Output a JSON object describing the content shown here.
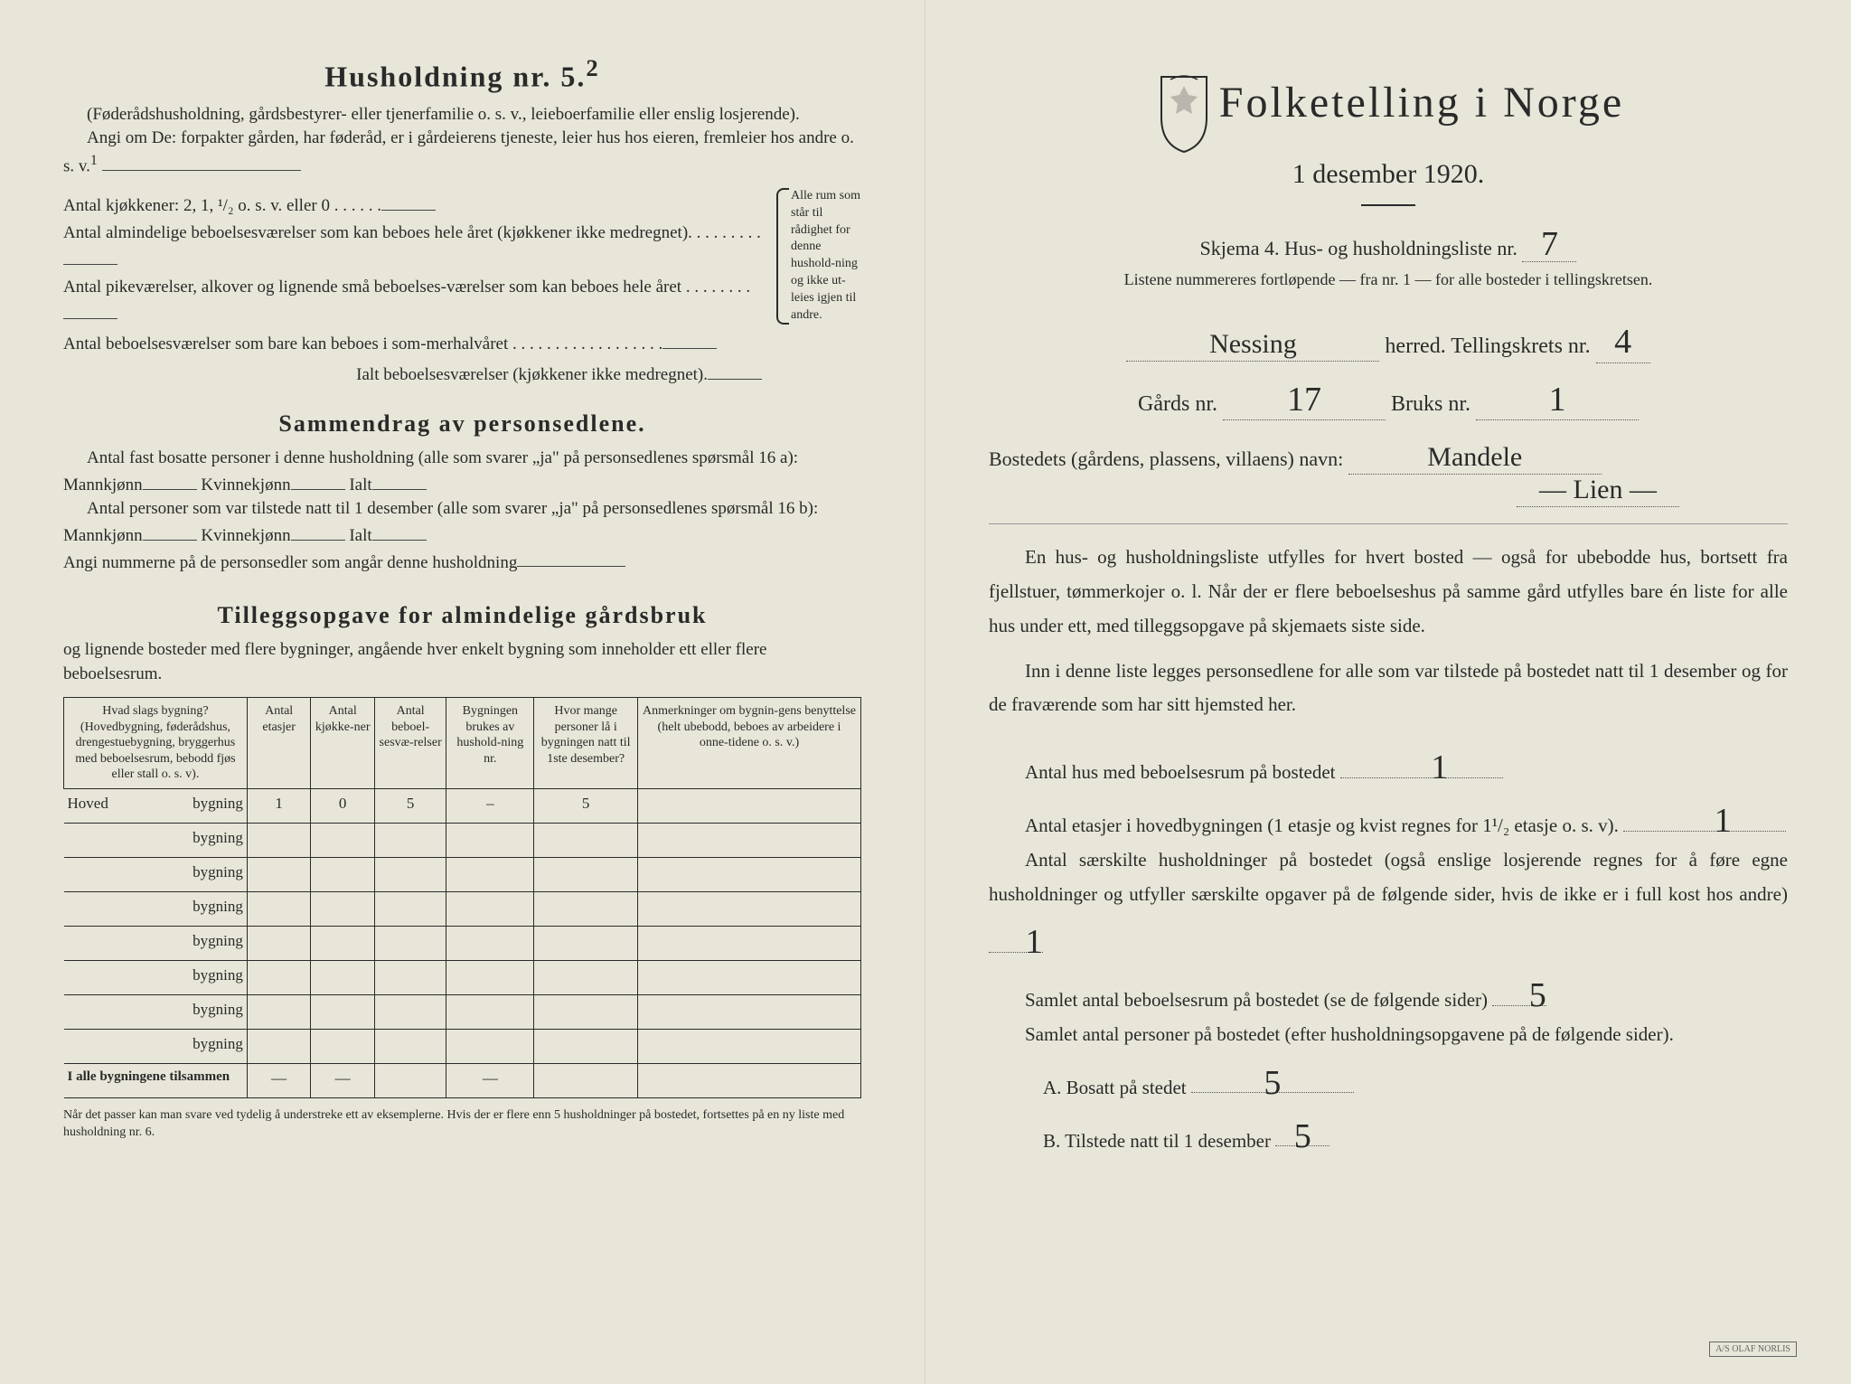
{
  "left": {
    "heading": "Husholdning nr. 5.",
    "heading_sup": "2",
    "p1": "(Føderådshusholdning, gårdsbestyrer- eller tjenerfamilie o. s. v., leieboerfamilie eller enslig losjerende).",
    "p2a": "Angi om De:  forpakter gården, har føderåd, er i gårdeierens tjeneste, leier hus hos eieren, fremleier hos andre o. s. v.",
    "p2_sup": "1",
    "k1": "Antal kjøkkener: 2, 1, ¹/₂ o. s. v. eller 0 . . . . . .",
    "k2": "Antal almindelige beboelsesværelser som kan beboes hele året (kjøkkener ikke medregnet). . . . . . . . .",
    "k3": "Antal pikeværelser, alkover og lignende små beboelses-værelser som kan beboes hele året . . . . . . . .",
    "k4": "Antal beboelsesværelser som bare kan beboes i som-merhalvåret . . . . . . . . . . . . . . . . . .",
    "k_sum": "Ialt beboelsesværelser  (kjøkkener ikke medregnet).",
    "curly": "Alle rum som står til rådighet for denne hushold-ning og ikke ut-leies igjen til andre.",
    "sec2": "Sammendrag av personsedlene.",
    "s2a": "Antal fast bosatte personer i denne husholdning (alle som svarer „ja\" på personsedlenes spørsmål 16 a): Mannkjønn",
    "s2a2": " Kvinnekjønn",
    "s2a3": " Ialt",
    "s2b": "Antal personer som var tilstede natt til 1 desember (alle som svarer „ja\" på personsedlenes spørsmål 16 b): Mannkjønn",
    "s2c": "Angi nummerne på de personsedler som angår denne husholdning",
    "sec3": "Tilleggsopgave for almindelige gårdsbruk",
    "s3sub": "og lignende bosteder med flere bygninger, angående hver enkelt bygning som inneholder ett eller flere beboelsesrum.",
    "th": [
      "Hvad slags bygning?\n(Hovedbygning, føderådshus, drengestuebygning, bryggerhus med beboelsesrum, bebodd fjøs eller stall o. s. v).",
      "Antal etasjer",
      "Antal kjøkke-ner",
      "Antal beboel-sesvæ-relser",
      "Bygningen brukes av hushold-ning nr.",
      "Hvor mange personer lå i bygningen natt til 1ste desember?",
      "Anmerkninger om bygnin-gens benyttelse (helt ubebodd, beboes av arbeidere i onne-tidene o. s. v.)"
    ],
    "rows": [
      {
        "name_hw": "Hoved",
        "lbl": "bygning",
        "c": [
          "1",
          "0",
          "5",
          "–",
          "5",
          ""
        ]
      },
      {
        "name_hw": "",
        "lbl": "bygning",
        "c": [
          "",
          "",
          "",
          "",
          "",
          ""
        ]
      },
      {
        "name_hw": "",
        "lbl": "bygning",
        "c": [
          "",
          "",
          "",
          "",
          "",
          ""
        ]
      },
      {
        "name_hw": "",
        "lbl": "bygning",
        "c": [
          "",
          "",
          "",
          "",
          "",
          ""
        ]
      },
      {
        "name_hw": "",
        "lbl": "bygning",
        "c": [
          "",
          "",
          "",
          "",
          "",
          ""
        ]
      },
      {
        "name_hw": "",
        "lbl": "bygning",
        "c": [
          "",
          "",
          "",
          "",
          "",
          ""
        ]
      },
      {
        "name_hw": "",
        "lbl": "bygning",
        "c": [
          "",
          "",
          "",
          "",
          "",
          ""
        ]
      },
      {
        "name_hw": "",
        "lbl": "bygning",
        "c": [
          "",
          "",
          "",
          "",
          "",
          ""
        ]
      }
    ],
    "sumrow": "I alle bygningene tilsammen",
    "foot": "Når det passer kan man svare ved tydelig å understreke ett av eksemplerne.\nHvis der er flere enn 5 husholdninger på bostedet, fortsettes på en ny liste med husholdning nr. 6."
  },
  "right": {
    "title": "Folketelling  i  Norge",
    "subtitle": "1 desember 1920.",
    "skjema": "Skjema 4.  Hus- og husholdningsliste nr.",
    "skjema_hw": "7",
    "listene": "Listene nummereres fortløpende — fra nr. 1 — for alle bosteder i tellingskretsen.",
    "herred_hw": "Nessing",
    "herred_lbl": " herred.   Tellingskrets nr.",
    "krets_hw": "4",
    "gards_lbl": "Gårds nr.",
    "gards_hw": "17",
    "bruks_lbl": "  Bruks nr.",
    "bruks_hw": "1",
    "bosted_lbl": "Bostedets (gårdens, plassens, villaens) navn:",
    "bosted_hw": "Mandele",
    "bosted_hw2": "— Lien —",
    "body1": "En hus- og husholdningsliste utfylles for hvert bosted — også for ubebodde hus, bortsett fra fjellstuer, tømmerkojer o. l.  Når der er flere beboelseshus på samme gård utfylles bare én liste for alle hus under ett, med tilleggsopgave på skjemaets siste side.",
    "body2": "Inn i denne liste legges personsedlene for alle som var tilstede på bostedet natt til 1 desember og for de fraværende som har sitt hjemsted her.",
    "q1": "Antal hus med beboelsesrum på bostedet",
    "q1_hw": "1",
    "q2a": "Antal etasjer i hovedbygningen (1 etasje og kvist regnes for 1¹/₂ etasje o. s. v).",
    "q2_hw": "1",
    "q3": "Antal særskilte husholdninger på bostedet (også enslige losjerende regnes for å føre egne husholdninger og utfyller særskilte opgaver på de følgende sider, hvis de ikke er i full kost hos andre)",
    "q3_hw": "1",
    "q4": "Samlet antal beboelsesrum på bostedet (se de følgende sider)",
    "q4_hw": "5",
    "q5": "Samlet antal personer på bostedet (efter husholdningsopgavene på de følgende sider).",
    "qa": "A.  Bosatt på stedet",
    "qa_hw": "5",
    "qb": "B.  Tilstede natt til 1 desember",
    "qb_hw": "5"
  },
  "style": {
    "bg": "#e8e6d8",
    "ink": "#2a2a2a",
    "hand_ink": "#2a2a2a"
  }
}
